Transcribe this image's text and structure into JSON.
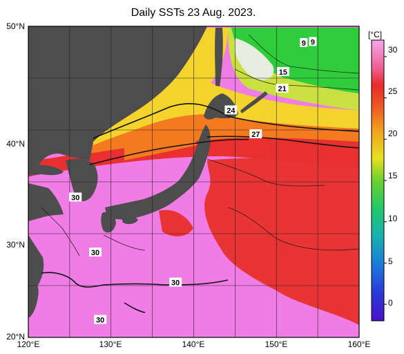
{
  "title": "Daily SSTs 23 Aug. 2023.",
  "colors": {
    "land": "#4d4d4d",
    "grid": "#222222",
    "contour": "#111111",
    "warm_pink": "#f07de6",
    "hot_red": "#e83030",
    "orange": "#f47a20",
    "yellow": "#f4d42c",
    "green": "#2fcc3c",
    "light": "#e8ece0"
  },
  "map": {
    "lon_labels": [
      "120°E",
      "130°E",
      "140°E",
      "150°E",
      "160°E"
    ],
    "lat_labels": [
      "50°N",
      "40°N",
      "30°N",
      "20°N"
    ],
    "lon_range": [
      120,
      160
    ],
    "lat_range": [
      20,
      50
    ],
    "contour_labels": [
      {
        "text": "9",
        "lon": 153.3,
        "lat": 48.4
      },
      {
        "text": "9",
        "lon": 154.4,
        "lat": 48.5
      },
      {
        "text": "15",
        "lon": 150.8,
        "lat": 45.6
      },
      {
        "text": "21",
        "lon": 150.7,
        "lat": 44.0
      },
      {
        "text": "24",
        "lon": 144.5,
        "lat": 41.9
      },
      {
        "text": "27",
        "lon": 147.5,
        "lat": 39.6
      },
      {
        "text": "30",
        "lon": 125.7,
        "lat": 33.5
      },
      {
        "text": "30",
        "lon": 128.1,
        "lat": 28.2
      },
      {
        "text": "30",
        "lon": 137.8,
        "lat": 25.3
      },
      {
        "text": "30",
        "lon": 128.7,
        "lat": 21.7
      }
    ]
  },
  "colorbar": {
    "unit": "[°C]",
    "ticks": [
      "30",
      "25",
      "20",
      "15",
      "10",
      "5",
      "0"
    ],
    "tick_values": [
      30,
      25,
      20,
      15,
      10,
      5,
      0
    ],
    "range": [
      -2,
      32
    ]
  }
}
